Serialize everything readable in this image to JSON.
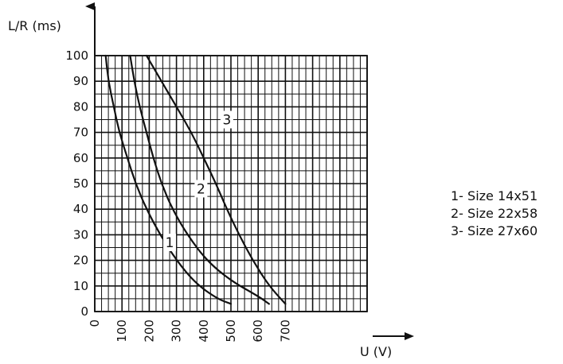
{
  "chart_data": {
    "type": "line",
    "xlabel": "U (V)",
    "ylabel": "L/R (ms)",
    "xlim": [
      0,
      1000
    ],
    "ylim": [
      0,
      100
    ],
    "x_ticks": [
      0,
      100,
      200,
      300,
      400,
      500,
      600,
      700
    ],
    "y_ticks": [
      0,
      10,
      20,
      30,
      40,
      50,
      60,
      70,
      80,
      90,
      100
    ],
    "grid": true,
    "line_color": "#111111",
    "series": [
      {
        "name": "1",
        "points": [
          [
            40,
            100
          ],
          [
            50,
            90
          ],
          [
            70,
            80
          ],
          [
            90,
            70
          ],
          [
            120,
            60
          ],
          [
            150,
            50
          ],
          [
            190,
            40
          ],
          [
            240,
            30
          ],
          [
            300,
            20
          ],
          [
            370,
            11
          ],
          [
            450,
            5
          ],
          [
            500,
            3
          ]
        ]
      },
      {
        "name": "2",
        "points": [
          [
            130,
            100
          ],
          [
            145,
            90
          ],
          [
            165,
            80
          ],
          [
            190,
            70
          ],
          [
            215,
            60
          ],
          [
            245,
            50
          ],
          [
            285,
            40
          ],
          [
            340,
            30
          ],
          [
            410,
            20
          ],
          [
            500,
            12
          ],
          [
            600,
            6
          ],
          [
            640,
            3
          ]
        ]
      },
      {
        "name": "3",
        "points": [
          [
            190,
            100
          ],
          [
            245,
            90
          ],
          [
            300,
            80
          ],
          [
            355,
            70
          ],
          [
            400,
            60
          ],
          [
            445,
            50
          ],
          [
            485,
            40
          ],
          [
            530,
            30
          ],
          [
            580,
            20
          ],
          [
            640,
            10
          ],
          [
            700,
            3
          ]
        ]
      }
    ],
    "curve_labels": [
      {
        "text": "1",
        "x": 275,
        "y": 27
      },
      {
        "text": "2",
        "x": 390,
        "y": 48
      },
      {
        "text": "3",
        "x": 485,
        "y": 75
      }
    ],
    "legend": {
      "position": "right",
      "entries": [
        "1- Size 14x51",
        "2- Size 22x58",
        "3- Size 27x60"
      ]
    }
  }
}
